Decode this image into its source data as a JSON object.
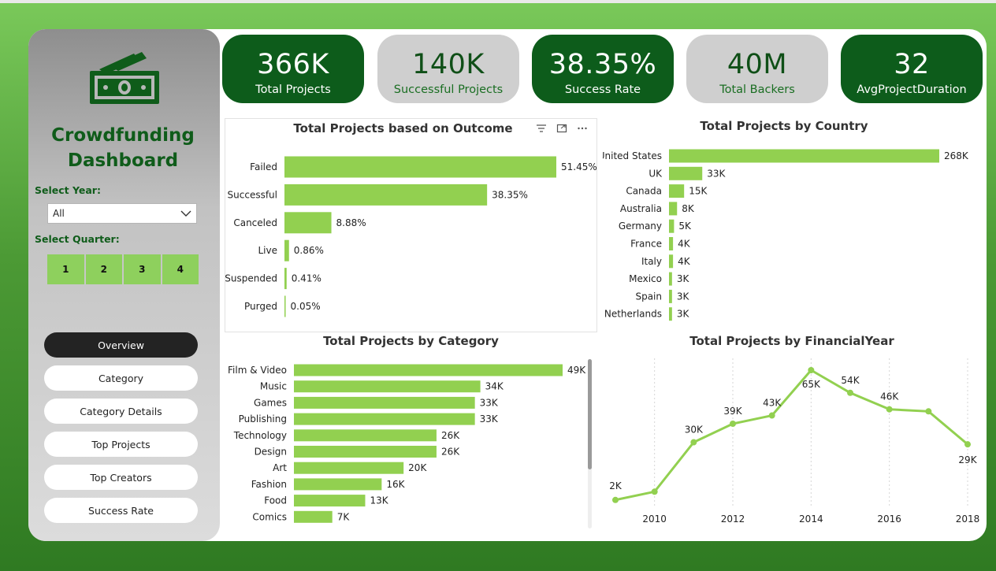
{
  "sidebar": {
    "title_line1": "Crowdfunding",
    "title_line2": "Dashboard",
    "logo_icon": "money-icon",
    "year_label": "Select Year:",
    "year_value": "All",
    "quarter_label": "Select Quarter:",
    "quarters": [
      "1",
      "2",
      "3",
      "4"
    ],
    "nav": [
      {
        "label": "Overview",
        "active": true
      },
      {
        "label": "Category",
        "active": false
      },
      {
        "label": "Category Details",
        "active": false
      },
      {
        "label": "Top Projects",
        "active": false
      },
      {
        "label": "Top Creators",
        "active": false
      },
      {
        "label": "Success Rate",
        "active": false
      }
    ]
  },
  "kpis": [
    {
      "value": "366K",
      "label": "Total Projects",
      "style": "dark"
    },
    {
      "value": "140K",
      "label": "Successful Projects",
      "style": "light"
    },
    {
      "value": "38.35%",
      "label": "Success Rate",
      "style": "dark"
    },
    {
      "value": "40M",
      "label": "Total Backers",
      "style": "light"
    },
    {
      "value": "32",
      "label": "AvgProjectDuration",
      "style": "dark"
    }
  ],
  "colors": {
    "bar": "#92d050",
    "kpi_dark": "#0d5c1b",
    "kpi_light": "#cfcfcf",
    "title_green": "#0f5c1a"
  },
  "chart_data": [
    {
      "type": "bar",
      "orientation": "horizontal",
      "title": "Total Projects based on Outcome",
      "categories": [
        "Failed",
        "Successful",
        "Canceled",
        "Live",
        "Suspended",
        "Purged"
      ],
      "values": [
        51.45,
        38.35,
        8.88,
        0.86,
        0.41,
        0.05
      ],
      "labels": [
        "51.45%",
        "38.35%",
        "8.88%",
        "0.86%",
        "0.41%",
        "0.05%"
      ],
      "xlim": [
        0,
        51.45
      ]
    },
    {
      "type": "bar",
      "orientation": "horizontal",
      "title": "Total Projects by Country",
      "categories": [
        "United States",
        "UK",
        "Canada",
        "Australia",
        "Germany",
        "France",
        "Italy",
        "Mexico",
        "Spain",
        "Netherlands"
      ],
      "values": [
        268,
        33,
        15,
        8,
        5,
        4,
        4,
        3,
        3,
        3
      ],
      "labels": [
        "268K",
        "33K",
        "15K",
        "8K",
        "5K",
        "4K",
        "4K",
        "3K",
        "3K",
        "3K"
      ],
      "xlim": [
        0,
        268
      ]
    },
    {
      "type": "bar",
      "orientation": "horizontal",
      "title": "Total Projects by Category",
      "categories": [
        "Film & Video",
        "Music",
        "Games",
        "Publishing",
        "Technology",
        "Design",
        "Art",
        "Fashion",
        "Food",
        "Comics"
      ],
      "values": [
        49,
        34,
        33,
        33,
        26,
        26,
        20,
        16,
        13,
        7
      ],
      "labels": [
        "49K",
        "34K",
        "33K",
        "33K",
        "26K",
        "26K",
        "20K",
        "16K",
        "13K",
        "7K"
      ],
      "xlim": [
        0,
        49
      ]
    },
    {
      "type": "line",
      "title": "Total Projects by FinancialYear",
      "x": [
        2009,
        2010,
        2011,
        2012,
        2013,
        2014,
        2015,
        2016,
        2017,
        2018
      ],
      "values": [
        2,
        6,
        30,
        39,
        43,
        65,
        54,
        46,
        45,
        29
      ],
      "point_labels": [
        "2K",
        "",
        "30K",
        "39K",
        "43K",
        "65K",
        "54K",
        "46K",
        "",
        "29K"
      ],
      "xticks": [
        "2010",
        "2012",
        "2014",
        "2016",
        "2018"
      ],
      "xlim": [
        2009,
        2018
      ],
      "ylim": [
        0,
        65
      ]
    }
  ]
}
